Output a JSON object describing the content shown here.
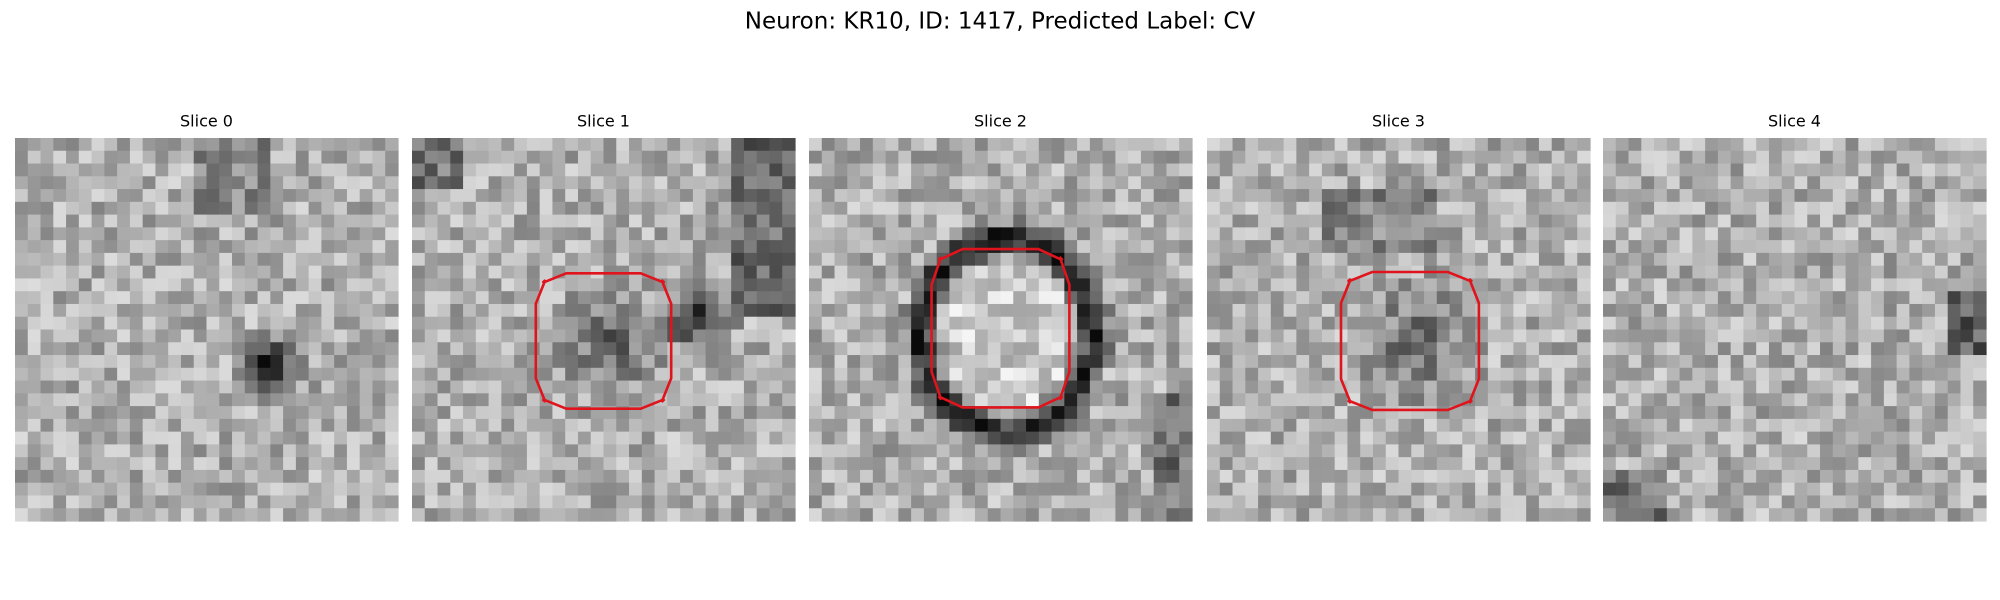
{
  "title": "Neuron: KR10, ID: 1417, Predicted Label: CV",
  "panels": [
    {
      "title": "Slice 0"
    },
    {
      "title": "Slice 1"
    },
    {
      "title": "Slice 2"
    },
    {
      "title": "Slice 3"
    },
    {
      "title": "Slice 4"
    }
  ]
}
